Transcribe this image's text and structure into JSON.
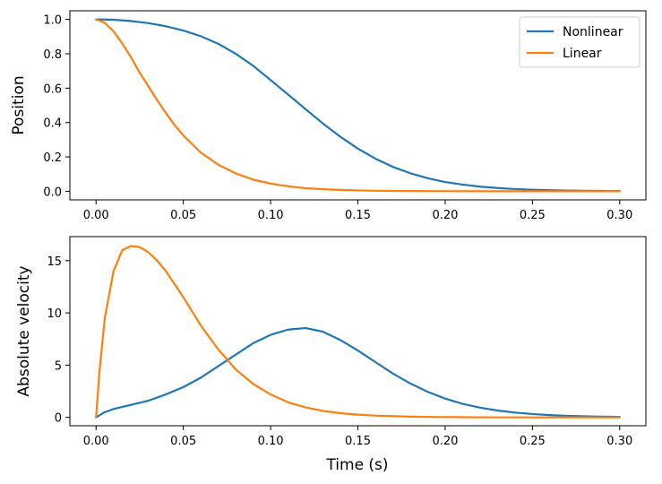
{
  "chart_data": [
    {
      "type": "line",
      "title": "",
      "xlabel": "",
      "ylabel": "Position",
      "xlim": [
        -0.015,
        0.315
      ],
      "ylim": [
        -0.05,
        1.05
      ],
      "xticks": [
        "0.00",
        "0.05",
        "0.10",
        "0.15",
        "0.20",
        "0.25",
        "0.30"
      ],
      "xtick_values": [
        0,
        0.05,
        0.1,
        0.15,
        0.2,
        0.25,
        0.3
      ],
      "yticks": [
        "0.0",
        "0.2",
        "0.4",
        "0.6",
        "0.8",
        "1.0"
      ],
      "ytick_values": [
        0,
        0.2,
        0.4,
        0.6,
        0.8,
        1.0
      ],
      "legend": {
        "placement": "top-right",
        "entries": [
          "Nonlinear",
          "Linear"
        ]
      },
      "series": [
        {
          "name": "Nonlinear",
          "color": "#1f77b4",
          "x": [
            0,
            0.01,
            0.02,
            0.03,
            0.04,
            0.05,
            0.06,
            0.07,
            0.08,
            0.09,
            0.1,
            0.11,
            0.12,
            0.13,
            0.14,
            0.15,
            0.16,
            0.17,
            0.18,
            0.19,
            0.2,
            0.21,
            0.22,
            0.23,
            0.24,
            0.25,
            0.26,
            0.27,
            0.28,
            0.29,
            0.3
          ],
          "y": [
            1.0,
            0.998,
            0.99,
            0.978,
            0.96,
            0.935,
            0.902,
            0.858,
            0.8,
            0.73,
            0.647,
            0.563,
            0.478,
            0.394,
            0.317,
            0.248,
            0.19,
            0.142,
            0.105,
            0.076,
            0.054,
            0.039,
            0.027,
            0.019,
            0.013,
            0.009,
            0.006,
            0.004,
            0.003,
            0.002,
            0.001
          ]
        },
        {
          "name": "Linear",
          "color": "#ff7f0e",
          "x": [
            0,
            0.005,
            0.01,
            0.015,
            0.02,
            0.025,
            0.03,
            0.035,
            0.04,
            0.045,
            0.05,
            0.06,
            0.07,
            0.08,
            0.09,
            0.1,
            0.11,
            0.12,
            0.13,
            0.14,
            0.15,
            0.16,
            0.18,
            0.2,
            0.22,
            0.24,
            0.26,
            0.28,
            0.3
          ],
          "y": [
            1.0,
            0.98,
            0.93,
            0.86,
            0.78,
            0.69,
            0.61,
            0.53,
            0.455,
            0.385,
            0.325,
            0.225,
            0.155,
            0.104,
            0.068,
            0.045,
            0.029,
            0.018,
            0.012,
            0.008,
            0.005,
            0.003,
            0.0015,
            0.0006,
            0.0003,
            0.0001,
            0.0,
            0.0,
            0.0
          ]
        }
      ]
    },
    {
      "type": "line",
      "title": "",
      "xlabel": "Time (s)",
      "ylabel": "Absolute velocity",
      "xlim": [
        -0.015,
        0.315
      ],
      "ylim": [
        -0.8,
        17.3
      ],
      "xticks": [
        "0.00",
        "0.05",
        "0.10",
        "0.15",
        "0.20",
        "0.25",
        "0.30"
      ],
      "xtick_values": [
        0,
        0.05,
        0.1,
        0.15,
        0.2,
        0.25,
        0.3
      ],
      "yticks": [
        "0",
        "5",
        "10",
        "15"
      ],
      "ytick_values": [
        0,
        5,
        10,
        15
      ],
      "series": [
        {
          "name": "Nonlinear",
          "color": "#1f77b4",
          "x": [
            0,
            0.005,
            0.01,
            0.02,
            0.03,
            0.04,
            0.05,
            0.06,
            0.07,
            0.08,
            0.09,
            0.1,
            0.11,
            0.12,
            0.13,
            0.14,
            0.15,
            0.16,
            0.17,
            0.18,
            0.19,
            0.2,
            0.21,
            0.22,
            0.23,
            0.24,
            0.25,
            0.26,
            0.27,
            0.28,
            0.29,
            0.3
          ],
          "y": [
            0,
            0.5,
            0.8,
            1.2,
            1.6,
            2.2,
            2.9,
            3.8,
            4.9,
            6.0,
            7.1,
            7.9,
            8.4,
            8.55,
            8.2,
            7.4,
            6.4,
            5.3,
            4.2,
            3.25,
            2.45,
            1.8,
            1.3,
            0.93,
            0.66,
            0.46,
            0.32,
            0.22,
            0.15,
            0.1,
            0.07,
            0.05
          ]
        },
        {
          "name": "Linear",
          "color": "#ff7f0e",
          "x": [
            0,
            0.002,
            0.005,
            0.01,
            0.015,
            0.02,
            0.025,
            0.03,
            0.035,
            0.04,
            0.05,
            0.06,
            0.07,
            0.08,
            0.09,
            0.1,
            0.11,
            0.12,
            0.13,
            0.14,
            0.15,
            0.16,
            0.18,
            0.2,
            0.22,
            0.25,
            0.3
          ],
          "y": [
            0,
            4.5,
            9.5,
            14.0,
            16.0,
            16.4,
            16.3,
            15.8,
            15.0,
            14.0,
            11.5,
            8.8,
            6.5,
            4.6,
            3.2,
            2.2,
            1.45,
            0.95,
            0.62,
            0.4,
            0.26,
            0.17,
            0.07,
            0.03,
            0.01,
            0.0,
            0.0
          ]
        }
      ]
    }
  ]
}
